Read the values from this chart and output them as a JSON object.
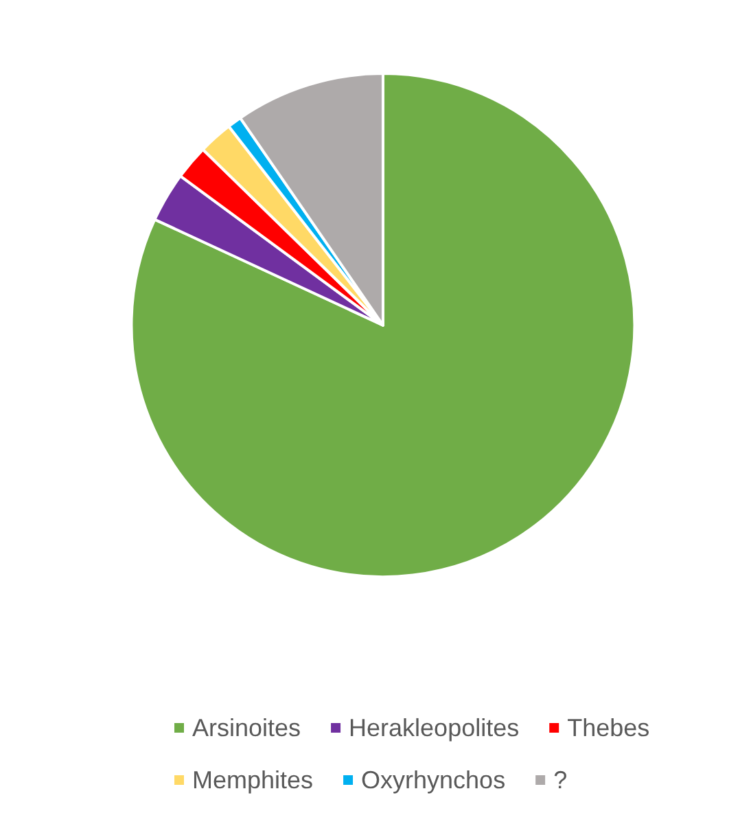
{
  "chart_data": {
    "type": "pie",
    "categories": [
      "Arsinoites",
      "Herakleopolites",
      "Thebes",
      "Memphites",
      "Oxyrhynchos",
      "?"
    ],
    "values": [
      81.9,
      3.2,
      2.2,
      2.2,
      0.9,
      9.6
    ],
    "colors": [
      "#70ad47",
      "#7030a0",
      "#ff0000",
      "#ffd966",
      "#00b0f0",
      "#aeaaaa"
    ],
    "legend": "bottom"
  }
}
